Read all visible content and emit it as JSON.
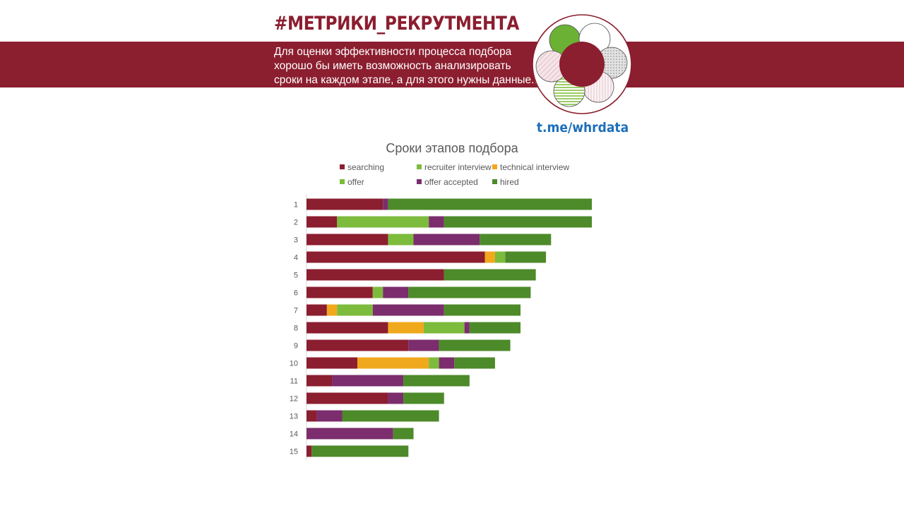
{
  "header": {
    "hashtag": "#МЕТРИКИ_РЕКРУТМЕНТА",
    "intro_lines": [
      "Для оценки эффективности процесса подбора",
      "хорошо бы иметь возможность анализировать",
      "сроки на каждом этапе, а для этого нужны данные..."
    ],
    "link": "t.me/whrdata",
    "brand_color": "#8b1e2f",
    "link_color": "#1e6fb8"
  },
  "chart_data": {
    "type": "bar",
    "orientation": "horizontal",
    "stacked": true,
    "title": "Сроки этапов подбора",
    "xlabel": "",
    "ylabel": "",
    "grid": false,
    "legend_position": "top",
    "xlim": [
      0,
      56
    ],
    "categories": [
      "1",
      "2",
      "3",
      "4",
      "5",
      "6",
      "7",
      "8",
      "9",
      "10",
      "11",
      "12",
      "13",
      "14",
      "15"
    ],
    "series": [
      {
        "name": "searching",
        "color": "#8b1e2f",
        "values": [
          15,
          6,
          16,
          35,
          27,
          13,
          4,
          16,
          20,
          10,
          5,
          16,
          2,
          0,
          1
        ]
      },
      {
        "name": "recruiter interview",
        "color": "#7dbb3c",
        "values": [
          0,
          0,
          0,
          0,
          0,
          0,
          0,
          0,
          0,
          0,
          0,
          0,
          0,
          0,
          0
        ]
      },
      {
        "name": "technical interview",
        "color": "#f0a81c",
        "values": [
          0,
          0,
          0,
          2,
          0,
          0,
          2,
          7,
          0,
          14,
          0,
          0,
          0,
          0,
          0
        ]
      },
      {
        "name": "offer",
        "color": "#7dbb3c",
        "values": [
          0,
          18,
          5,
          2,
          0,
          2,
          7,
          8,
          0,
          2,
          0,
          0,
          0,
          0,
          0
        ]
      },
      {
        "name": "offer accepted",
        "color": "#7b2d6d",
        "values": [
          1,
          3,
          13,
          0,
          0,
          5,
          14,
          1,
          6,
          3,
          14,
          3,
          5,
          17,
          0
        ]
      },
      {
        "name": "hired",
        "color": "#4d8a2a",
        "values": [
          40,
          29,
          14,
          8,
          18,
          24,
          15,
          10,
          14,
          8,
          13,
          8,
          19,
          4,
          19
        ]
      }
    ]
  }
}
